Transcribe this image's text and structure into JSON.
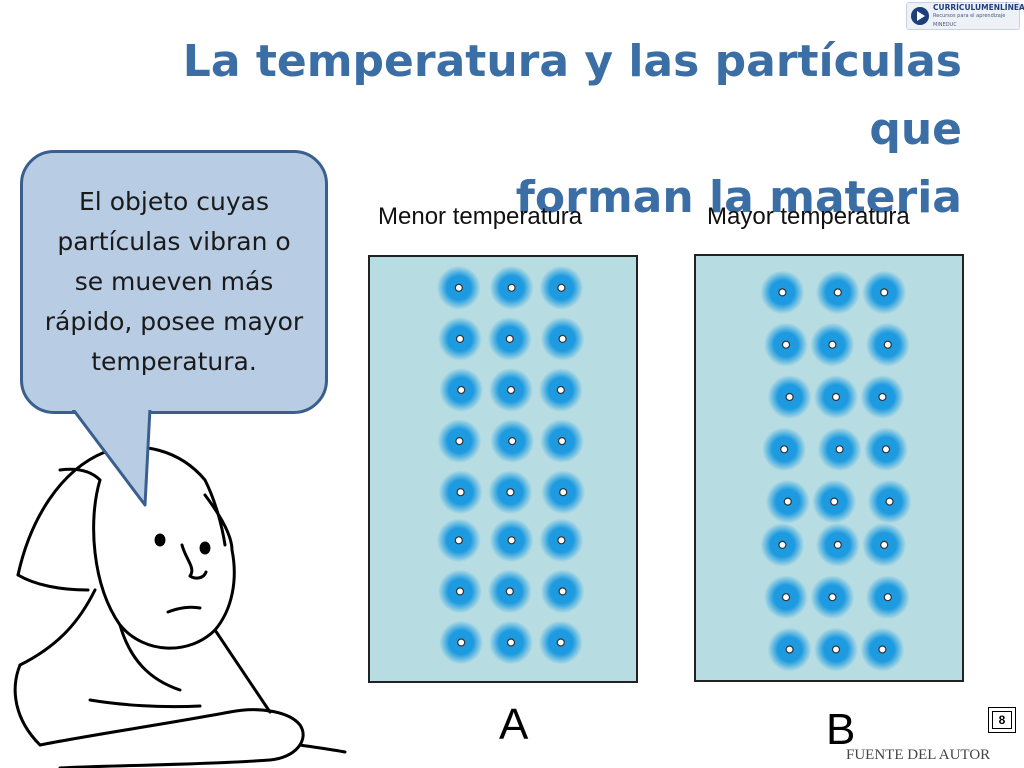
{
  "header": {
    "title_line1": "La temperatura y las partículas que",
    "title_line2": "forman la materia"
  },
  "logo": {
    "icon": "curriculum-logo-icon",
    "name": "CURRÍCULUMENLÍNEA",
    "tagline": "Recursos para el aprendizaje MINEDUC"
  },
  "bubble": {
    "text": "El objeto cuyas partículas vibran o se mueven más rápido, posee mayor temperatura."
  },
  "panels": [
    {
      "heading": "Menor temperatura",
      "letter": "A",
      "rows": 8,
      "cols": 3,
      "vibration": "low"
    },
    {
      "heading": "Mayor temperatura",
      "letter": "B",
      "rows": 8,
      "cols": 3,
      "vibration": "high"
    }
  ],
  "footer": {
    "page_number": "8",
    "source": "FUENTE DEL AUTOR"
  },
  "colors": {
    "title": "#3a6ea5",
    "bubble_fill": "#b8cce4",
    "bubble_border": "#3a5f8f",
    "box_fill": "#b7dde3",
    "particle": "#1e9be0"
  }
}
